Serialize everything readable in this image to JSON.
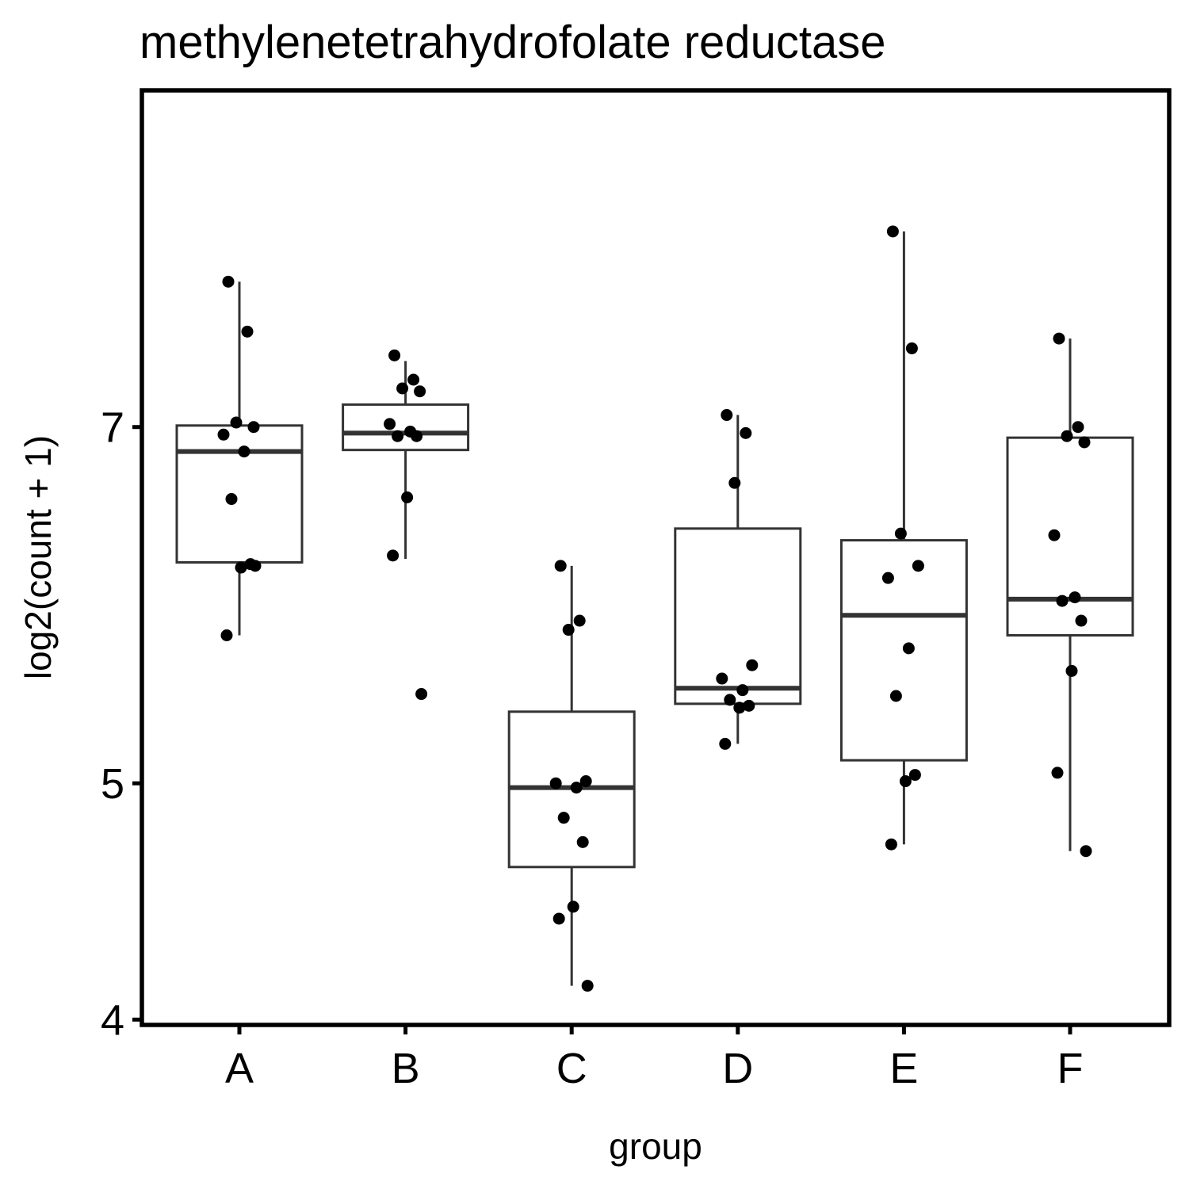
{
  "chart_data": {
    "type": "boxplot",
    "title": "methylenetetrahydrofolate reductase",
    "xlabel": "group",
    "ylabel": "log2(count + 1)",
    "y_scale": "log",
    "ylim": [
      3.98,
      9.62
    ],
    "yticks": [
      4,
      5,
      7
    ],
    "categories": [
      "A",
      "B",
      "C",
      "D",
      "E",
      "F"
    ],
    "boxes": [
      {
        "group": "A",
        "whisker_low": 5.75,
        "q1": 6.16,
        "median": 6.84,
        "q3": 7.01,
        "whisker_high": 8.03
      },
      {
        "group": "B",
        "whisker_low": 6.18,
        "q1": 6.85,
        "median": 6.96,
        "q3": 7.15,
        "whisker_high": 7.45
      },
      {
        "group": "C",
        "whisker_low": 4.13,
        "q1": 4.62,
        "median": 4.98,
        "q3": 5.35,
        "whisker_high": 6.14
      },
      {
        "group": "D",
        "whisker_low": 5.19,
        "q1": 5.39,
        "median": 5.47,
        "q3": 6.36,
        "whisker_high": 7.08
      },
      {
        "group": "E",
        "whisker_low": 4.72,
        "q1": 5.11,
        "median": 5.86,
        "q3": 6.29,
        "whisker_high": 8.42
      },
      {
        "group": "F",
        "whisker_low": 4.69,
        "q1": 5.75,
        "median": 5.95,
        "q3": 6.93,
        "whisker_high": 7.61
      }
    ],
    "points": [
      {
        "group": "A",
        "values": [
          8.03,
          7.66,
          7.03,
          7.0,
          6.95,
          6.84,
          6.54,
          6.15,
          6.13,
          5.75,
          6.14
        ]
      },
      {
        "group": "B",
        "values": [
          7.49,
          7.32,
          7.26,
          7.24,
          7.02,
          6.97,
          6.94,
          6.94,
          6.55,
          6.2,
          5.44
        ]
      },
      {
        "group": "C",
        "values": [
          6.14,
          5.83,
          5.78,
          5.01,
          5.0,
          4.98,
          4.84,
          4.73,
          4.45,
          4.4,
          4.13
        ]
      },
      {
        "group": "D",
        "values": [
          7.08,
          6.96,
          6.64,
          5.59,
          5.52,
          5.46,
          5.41,
          5.38,
          5.37,
          5.19
        ]
      },
      {
        "group": "E",
        "values": [
          8.42,
          7.54,
          6.33,
          6.14,
          6.07,
          5.68,
          5.43,
          5.04,
          5.01,
          4.72
        ]
      },
      {
        "group": "F",
        "values": [
          7.61,
          7.0,
          6.94,
          6.9,
          6.32,
          5.96,
          5.94,
          5.83,
          5.56,
          5.05,
          4.69
        ]
      }
    ]
  }
}
